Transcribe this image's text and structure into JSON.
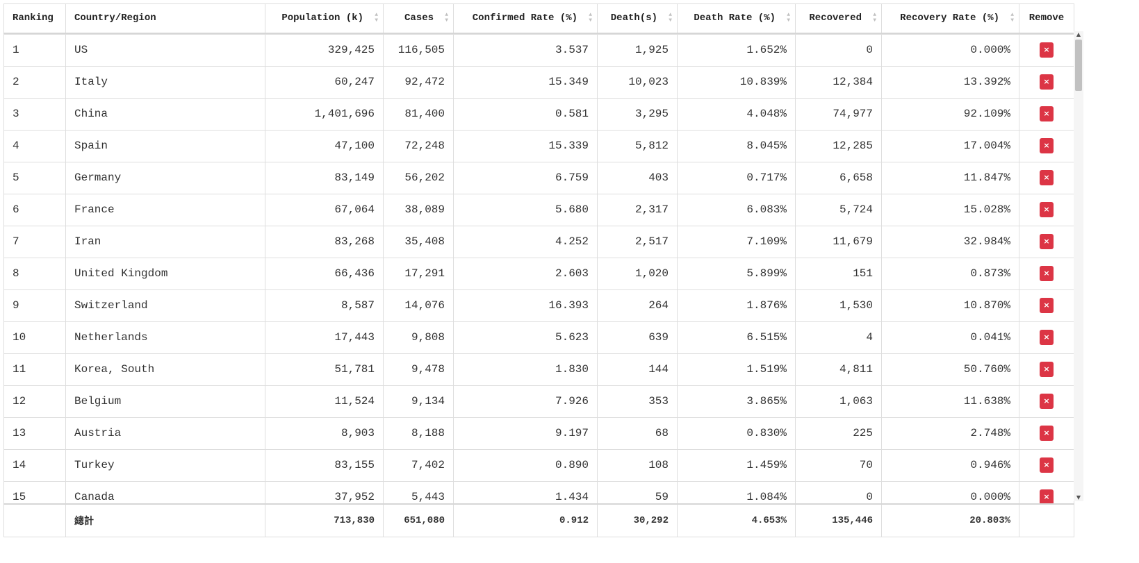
{
  "columns": [
    {
      "key": "ranking",
      "label": "Ranking",
      "align": "l",
      "sortable": false
    },
    {
      "key": "country",
      "label": "Country/Region",
      "align": "l",
      "sortable": false
    },
    {
      "key": "population",
      "label": "Population (k)",
      "align": "r",
      "sortable": true
    },
    {
      "key": "cases",
      "label": "Cases",
      "align": "r",
      "sortable": true
    },
    {
      "key": "confirmed_rate",
      "label": "Confirmed Rate (%)",
      "align": "r",
      "sortable": true
    },
    {
      "key": "deaths",
      "label": "Death(s)",
      "align": "r",
      "sortable": true
    },
    {
      "key": "death_rate",
      "label": "Death Rate (%)",
      "align": "r",
      "sortable": true
    },
    {
      "key": "recovered",
      "label": "Recovered",
      "align": "r",
      "sortable": true
    },
    {
      "key": "recovery_rate",
      "label": "Recovery Rate (%)",
      "align": "r",
      "sortable": true
    },
    {
      "key": "remove",
      "label": "Remove",
      "align": "c",
      "sortable": false
    }
  ],
  "remove_label": "×",
  "rows": [
    [
      "1",
      "US",
      "329,425",
      "116,505",
      "3.537",
      "1,925",
      "1.652%",
      "0",
      "0.000%"
    ],
    [
      "2",
      "Italy",
      "60,247",
      "92,472",
      "15.349",
      "10,023",
      "10.839%",
      "12,384",
      "13.392%"
    ],
    [
      "3",
      "China",
      "1,401,696",
      "81,400",
      "0.581",
      "3,295",
      "4.048%",
      "74,977",
      "92.109%"
    ],
    [
      "4",
      "Spain",
      "47,100",
      "72,248",
      "15.339",
      "5,812",
      "8.045%",
      "12,285",
      "17.004%"
    ],
    [
      "5",
      "Germany",
      "83,149",
      "56,202",
      "6.759",
      "403",
      "0.717%",
      "6,658",
      "11.847%"
    ],
    [
      "6",
      "France",
      "67,064",
      "38,089",
      "5.680",
      "2,317",
      "6.083%",
      "5,724",
      "15.028%"
    ],
    [
      "7",
      "Iran",
      "83,268",
      "35,408",
      "4.252",
      "2,517",
      "7.109%",
      "11,679",
      "32.984%"
    ],
    [
      "8",
      "United Kingdom",
      "66,436",
      "17,291",
      "2.603",
      "1,020",
      "5.899%",
      "151",
      "0.873%"
    ],
    [
      "9",
      "Switzerland",
      "8,587",
      "14,076",
      "16.393",
      "264",
      "1.876%",
      "1,530",
      "10.870%"
    ],
    [
      "10",
      "Netherlands",
      "17,443",
      "9,808",
      "5.623",
      "639",
      "6.515%",
      "4",
      "0.041%"
    ],
    [
      "11",
      "Korea, South",
      "51,781",
      "9,478",
      "1.830",
      "144",
      "1.519%",
      "4,811",
      "50.760%"
    ],
    [
      "12",
      "Belgium",
      "11,524",
      "9,134",
      "7.926",
      "353",
      "3.865%",
      "1,063",
      "11.638%"
    ],
    [
      "13",
      "Austria",
      "8,903",
      "8,188",
      "9.197",
      "68",
      "0.830%",
      "225",
      "2.748%"
    ],
    [
      "14",
      "Turkey",
      "83,155",
      "7,402",
      "0.890",
      "108",
      "1.459%",
      "70",
      "0.946%"
    ],
    [
      "15",
      "Canada",
      "37,952",
      "5,443",
      "1.434",
      "59",
      "1.084%",
      "0",
      "0.000%"
    ]
  ],
  "totals": [
    "",
    "總計",
    "713,830",
    "651,080",
    "0.912",
    "30,292",
    "4.653%",
    "135,446",
    "20.803%"
  ]
}
